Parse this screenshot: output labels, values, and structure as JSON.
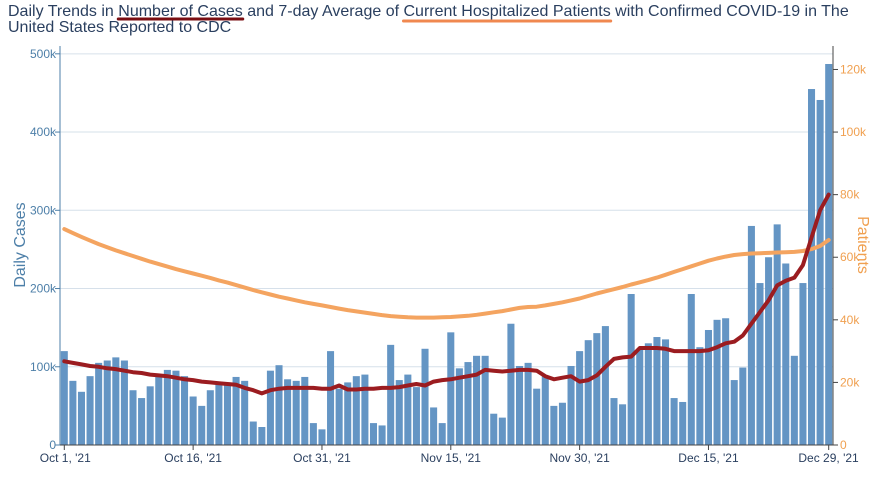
{
  "chart_data": {
    "type": "bar",
    "title_line1_parts": [
      "Daily Trends in ",
      "Number of Cases",
      " and 7-day Average of ",
      "Current Hospitalized Patients",
      " with Confirmed COVID-19 in The"
    ],
    "title_line2": "United States Reported to CDC",
    "ylabel": "Daily Cases",
    "y2label": "Patients",
    "ylim": [
      0,
      510000
    ],
    "y2lim": [
      0,
      127500
    ],
    "yticks": [
      0,
      100000,
      200000,
      300000,
      400000,
      500000
    ],
    "yticklabels": [
      "0",
      "100k",
      "200k",
      "300k",
      "400k",
      "500k"
    ],
    "y2ticks": [
      0,
      20000,
      40000,
      60000,
      80000,
      100000,
      120000
    ],
    "y2ticklabels": [
      "0",
      "20k",
      "40k",
      "60k",
      "80k",
      "100k",
      "120k"
    ],
    "xtick_index": [
      0,
      15,
      30,
      45,
      60,
      75,
      89
    ],
    "xticklabels": [
      "Oct 1, '21",
      "Oct 16, '21",
      "Oct 31, '21",
      "Nov 15, '21",
      "Nov 30, '21",
      "Dec 15, '21",
      "Dec 29, '21"
    ],
    "grid": true,
    "colors": {
      "bars": "#6495c4",
      "avg": "#9b1c20",
      "hosp": "#f4a460",
      "title_underline_cases": "#7a0e12",
      "title_underline_hosp": "#f08850"
    },
    "series": [
      {
        "name": "Number of Cases",
        "kind": "bar",
        "axis": "left",
        "values": [
          120000,
          82000,
          68000,
          88000,
          105000,
          108000,
          112000,
          108000,
          70000,
          60000,
          75000,
          90000,
          96000,
          95000,
          88000,
          62000,
          50000,
          70000,
          78000,
          80000,
          87000,
          82000,
          30000,
          23000,
          95000,
          102000,
          84000,
          82000,
          87000,
          28000,
          20000,
          120000,
          72000,
          80000,
          88000,
          90000,
          28000,
          25000,
          128000,
          83000,
          90000,
          74000,
          123000,
          48000,
          28000,
          144000,
          98000,
          106000,
          114000,
          114000,
          40000,
          35000,
          155000,
          101000,
          105000,
          72000,
          88000,
          50000,
          54000,
          101000,
          120000,
          134000,
          143000,
          152000,
          60000,
          52000,
          193000,
          122000,
          130000,
          138000,
          135000,
          60000,
          55000,
          193000,
          125000,
          147000,
          160000,
          162000,
          83000,
          99000,
          280000,
          207000,
          240000,
          282000,
          232000,
          114000,
          207000,
          455000,
          441000,
          487000
        ]
      },
      {
        "name": "7-day Average of Cases",
        "kind": "line",
        "axis": "left",
        "values": [
          107000,
          105000,
          103000,
          101000,
          100000,
          98000,
          97000,
          95000,
          93000,
          92000,
          90000,
          89000,
          88000,
          86000,
          84000,
          83000,
          81000,
          80000,
          79000,
          78000,
          77000,
          73000,
          70000,
          66000,
          70000,
          72000,
          73000,
          73000,
          73000,
          73000,
          72000,
          72000,
          76000,
          71000,
          71000,
          72000,
          72000,
          73000,
          73000,
          74000,
          76000,
          78000,
          76000,
          81000,
          83000,
          84000,
          86000,
          88000,
          90000,
          96000,
          95000,
          94000,
          95000,
          96000,
          96000,
          95000,
          88000,
          84000,
          86000,
          88000,
          81000,
          83000,
          89000,
          100000,
          110000,
          112000,
          113000,
          124000,
          124000,
          124000,
          123000,
          120000,
          120000,
          120000,
          120000,
          121000,
          125000,
          130000,
          132000,
          140000,
          155000,
          170000,
          185000,
          204000,
          210000,
          214000,
          230000,
          265000,
          300000,
          320000
        ]
      },
      {
        "name": "Current Hospitalized Patients",
        "kind": "line",
        "axis": "right",
        "values": [
          69000,
          67700,
          66500,
          65300,
          64200,
          63200,
          62200,
          61300,
          60400,
          59500,
          58600,
          57800,
          57000,
          56200,
          55500,
          54800,
          54100,
          53400,
          52600,
          51900,
          51100,
          50300,
          49500,
          48800,
          48100,
          47400,
          46800,
          46200,
          45600,
          45100,
          44600,
          44100,
          43600,
          43100,
          42700,
          42300,
          41900,
          41500,
          41200,
          41000,
          40800,
          40700,
          40700,
          40700,
          40800,
          40900,
          41100,
          41300,
          41600,
          42000,
          42400,
          42800,
          43300,
          43800,
          44100,
          44200,
          44600,
          45100,
          45600,
          46200,
          46800,
          47600,
          48400,
          49100,
          49800,
          50500,
          51300,
          52000,
          52700,
          53500,
          54400,
          55300,
          56200,
          57100,
          58000,
          58900,
          59600,
          60200,
          60700,
          61000,
          61200,
          61300,
          61400,
          61500,
          61600,
          61700,
          62000,
          62600,
          63600,
          65500
        ]
      }
    ]
  }
}
